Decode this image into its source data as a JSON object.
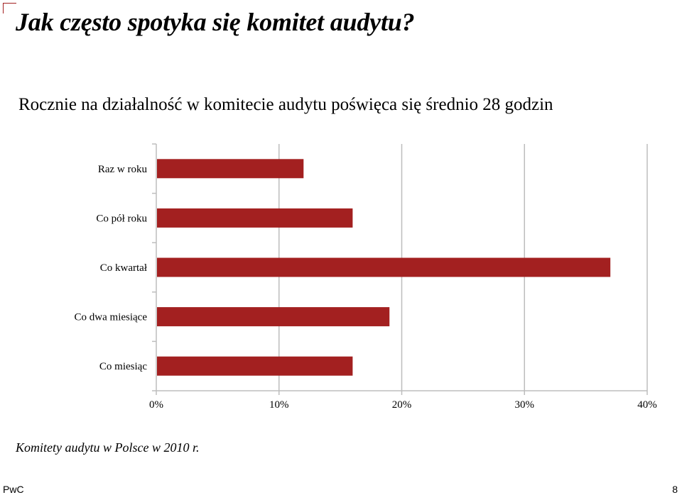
{
  "header": {
    "title": "Jak często spotyka się komitet audytu?",
    "subtitle": "Rocznie na działalność w komitecie audytu poświęca się średnio 28 godzin"
  },
  "chart_data": {
    "type": "bar",
    "orientation": "horizontal",
    "categories": [
      "Raz w roku",
      "Co pół roku",
      "Co kwartał",
      "Co dwa miesiące",
      "Co miesiąc"
    ],
    "values": [
      12,
      16,
      37,
      19,
      16
    ],
    "value_unit": "%",
    "xlim": [
      0,
      40
    ],
    "x_ticks": [
      "0%",
      "10%",
      "20%",
      "30%",
      "40%"
    ],
    "bar_color": "#a32020",
    "grid": true
  },
  "footer": {
    "source": "Komitety audytu w Polsce w 2010 r.",
    "brand": "PwC",
    "page_number": "8"
  }
}
